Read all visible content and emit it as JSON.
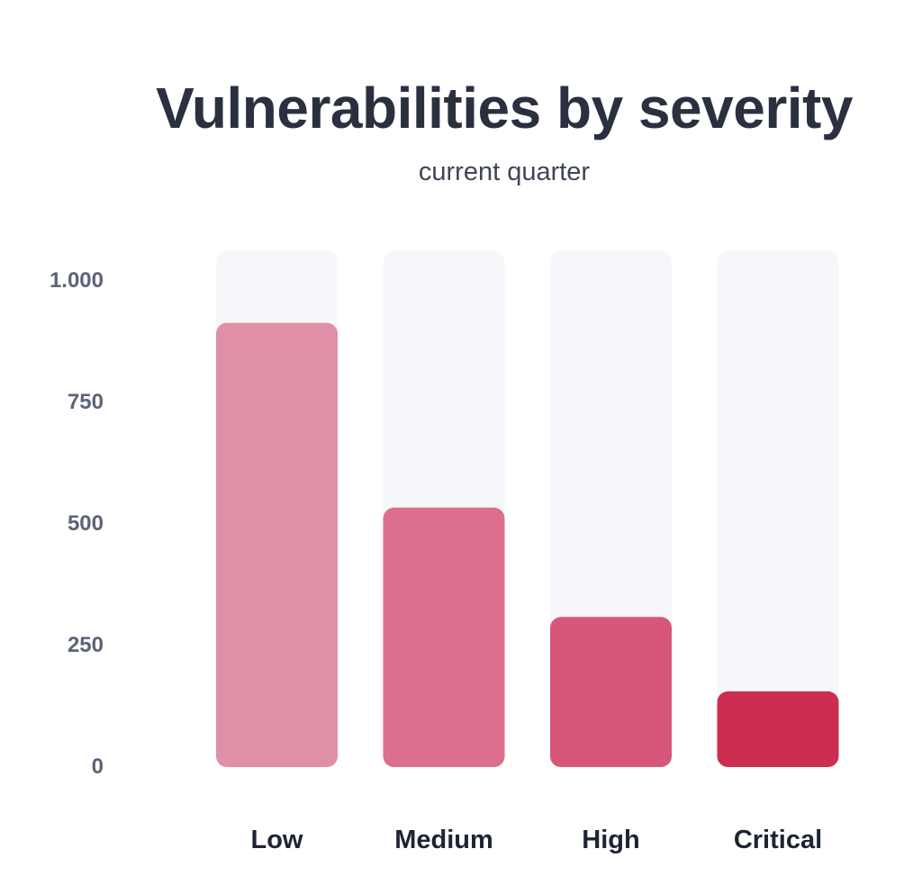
{
  "chart_data": {
    "type": "bar",
    "title": "Vulnerabilities by severity",
    "subtitle": "current quarter",
    "categories": [
      "Low",
      "Medium",
      "High",
      "Critical"
    ],
    "values": [
      910,
      530,
      305,
      152
    ],
    "ylim": [
      0,
      1060
    ],
    "yticks": [
      0,
      250,
      500,
      750,
      1000
    ],
    "ytick_labels": [
      "0",
      "250",
      "500",
      "750",
      "1.000"
    ],
    "xlabel": "",
    "ylabel": "",
    "grid": false,
    "legend": "none",
    "colors": [
      "#df8fa6",
      "#db6f8d",
      "#d6577a",
      "#cc2e52"
    ],
    "track_color": "#f6f7fb"
  }
}
